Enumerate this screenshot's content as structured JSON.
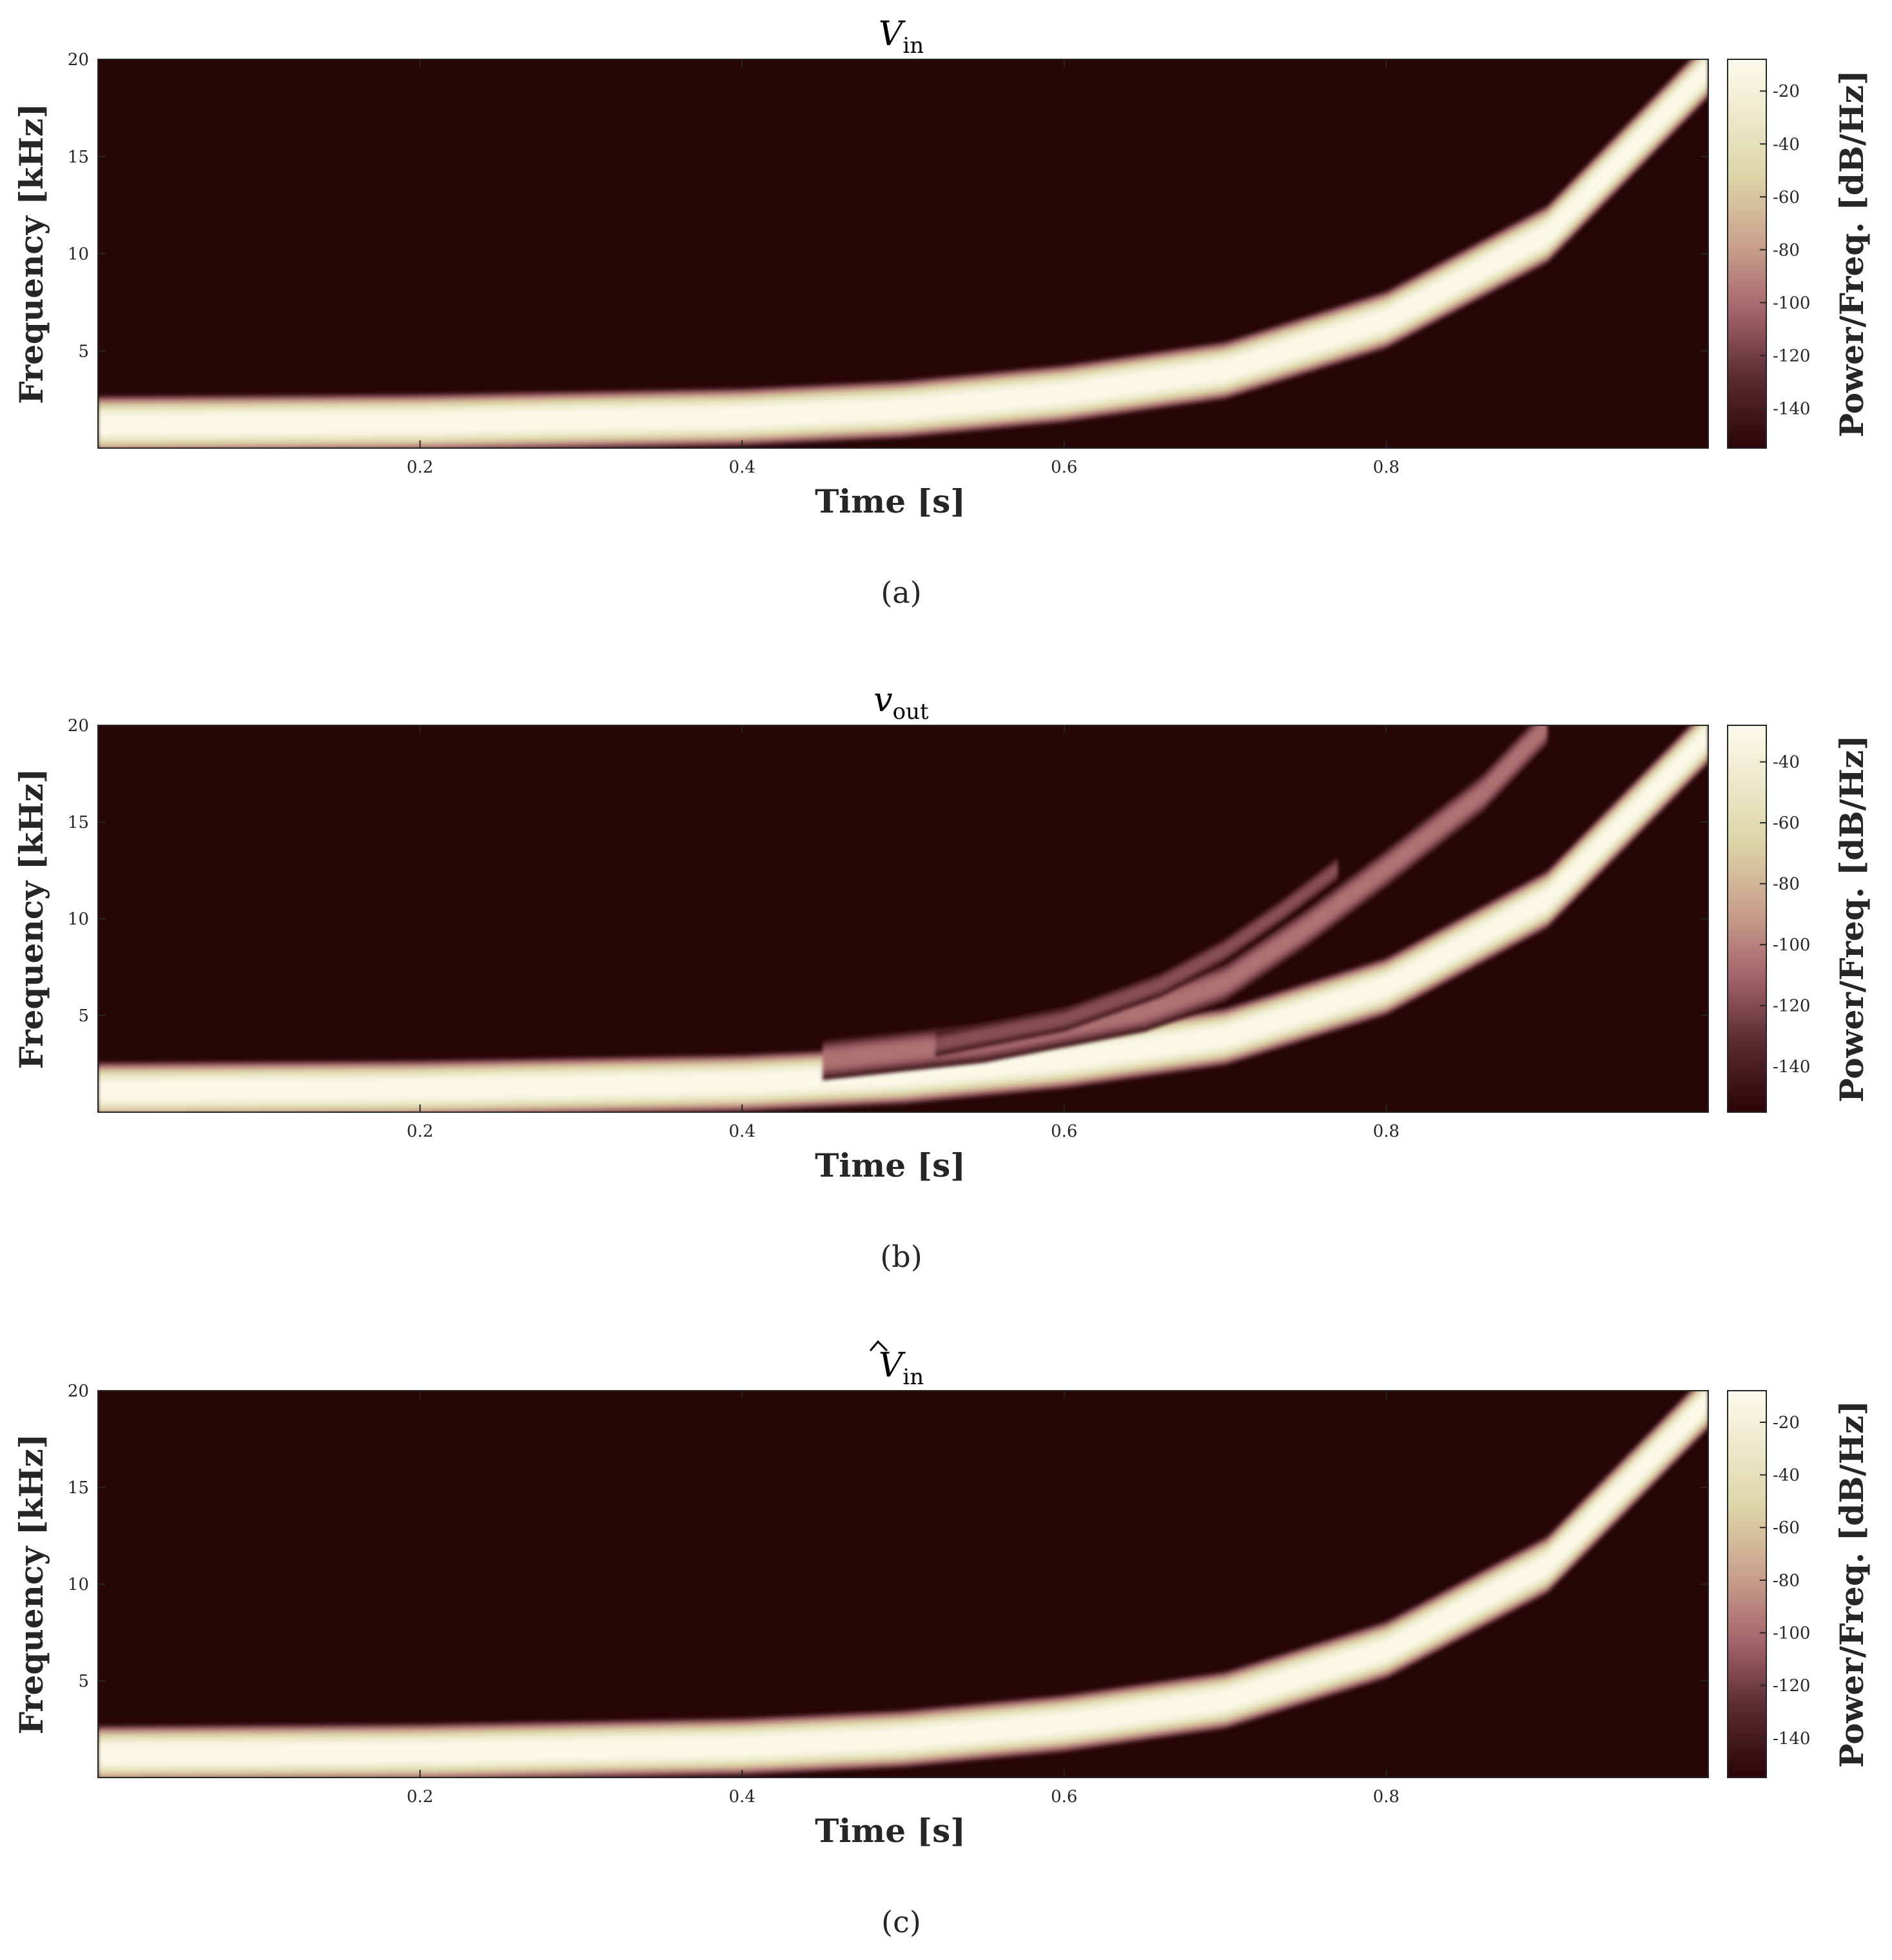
{
  "chart_data": [
    {
      "type": "heatmap",
      "title_main": "V",
      "title_sub": "in",
      "title_hat": false,
      "caption": "(a)",
      "xlabel": "Time [s]",
      "ylabel": "Frequency [kHz]",
      "colorbar_label": "Power/Freq. [dB/Hz]",
      "xlim": [
        0,
        1
      ],
      "ylim": [
        0,
        20
      ],
      "xticks": [
        "0.2",
        "0.4",
        "0.6",
        "0.8"
      ],
      "yticks": [
        "5",
        "10",
        "15",
        "20"
      ],
      "clim": [
        -155,
        -8
      ],
      "cticks": [
        "-20",
        "-40",
        "-60",
        "-80",
        "-100",
        "-120",
        "-140"
      ],
      "ridges": [
        {
          "name": "fundamental",
          "points": [
            [
              0,
              1.2
            ],
            [
              0.2,
              1.3
            ],
            [
              0.4,
              1.6
            ],
            [
              0.5,
              2.0
            ],
            [
              0.6,
              2.8
            ],
            [
              0.7,
              4.0
            ],
            [
              0.8,
              6.6
            ],
            [
              0.9,
              11.0
            ],
            [
              1.0,
              19.5
            ]
          ],
          "halfwidth_khz": 1.1,
          "peak_db": -10
        }
      ]
    },
    {
      "type": "heatmap",
      "title_main": "v",
      "title_sub": "out",
      "title_hat": false,
      "caption": "(b)",
      "xlabel": "Time [s]",
      "ylabel": "Frequency [kHz]",
      "colorbar_label": "Power/Freq. [dB/Hz]",
      "xlim": [
        0,
        1
      ],
      "ylim": [
        0,
        20
      ],
      "xticks": [
        "0.2",
        "0.4",
        "0.6",
        "0.8"
      ],
      "yticks": [
        "5",
        "10",
        "15",
        "20"
      ],
      "clim": [
        -155,
        -28
      ],
      "cticks": [
        "-40",
        "-60",
        "-80",
        "-100",
        "-120",
        "-140"
      ],
      "ridges": [
        {
          "name": "fundamental",
          "points": [
            [
              0,
              1.1
            ],
            [
              0.2,
              1.2
            ],
            [
              0.4,
              1.5
            ],
            [
              0.5,
              1.9
            ],
            [
              0.6,
              2.7
            ],
            [
              0.7,
              3.9
            ],
            [
              0.8,
              6.5
            ],
            [
              0.9,
              11.0
            ],
            [
              1.0,
              19.5
            ]
          ],
          "halfwidth_khz": 1.1,
          "peak_db": -30
        },
        {
          "name": "harmonic",
          "points": [
            [
              0.45,
              2.7
            ],
            [
              0.55,
              3.6
            ],
            [
              0.65,
              5.2
            ],
            [
              0.7,
              6.7
            ],
            [
              0.75,
              9.5
            ],
            [
              0.8,
              12.6
            ],
            [
              0.86,
              16.5
            ],
            [
              0.9,
              20.0
            ]
          ],
          "halfwidth_khz": 0.75,
          "peak_db": -105
        },
        {
          "name": "aliased-harmonic",
          "points": [
            [
              0.52,
              3.5
            ],
            [
              0.6,
              4.8
            ],
            [
              0.66,
              6.6
            ],
            [
              0.7,
              8.4
            ],
            [
              0.735,
              10.4
            ],
            [
              0.77,
              12.6
            ]
          ],
          "halfwidth_khz": 0.45,
          "peak_db": -118
        }
      ]
    },
    {
      "type": "heatmap",
      "title_main": "V",
      "title_sub": "in",
      "title_hat": true,
      "caption": "(c)",
      "xlabel": "Time [s]",
      "ylabel": "Frequency [kHz]",
      "colorbar_label": "Power/Freq. [dB/Hz]",
      "xlim": [
        0,
        1
      ],
      "ylim": [
        0,
        20
      ],
      "xticks": [
        "0.2",
        "0.4",
        "0.6",
        "0.8"
      ],
      "yticks": [
        "5",
        "10",
        "15",
        "20"
      ],
      "clim": [
        -155,
        -8
      ],
      "cticks": [
        "-20",
        "-40",
        "-60",
        "-80",
        "-100",
        "-120",
        "-140"
      ],
      "ridges": [
        {
          "name": "fundamental",
          "points": [
            [
              0,
              1.2
            ],
            [
              0.2,
              1.3
            ],
            [
              0.4,
              1.6
            ],
            [
              0.5,
              2.0
            ],
            [
              0.6,
              2.8
            ],
            [
              0.7,
              4.0
            ],
            [
              0.8,
              6.6
            ],
            [
              0.9,
              11.0
            ],
            [
              1.0,
              19.5
            ]
          ],
          "halfwidth_khz": 1.1,
          "peak_db": -10
        }
      ]
    }
  ],
  "colormap": {
    "stops": [
      [
        "#2a0508",
        0.0
      ],
      [
        "#5a2a32",
        0.18
      ],
      [
        "#a6676c",
        0.36
      ],
      [
        "#c9a08c",
        0.52
      ],
      [
        "#ddd5a8",
        0.7
      ],
      [
        "#fcfbec",
        1.0
      ]
    ],
    "background": "#260607"
  }
}
